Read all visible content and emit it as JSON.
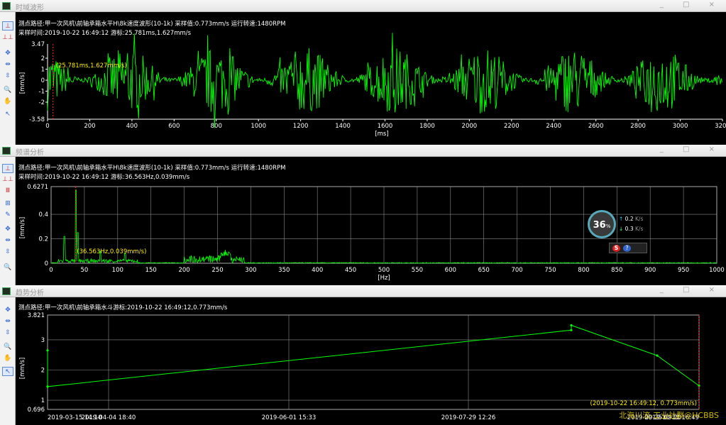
{
  "panels": {
    "time": {
      "title": "时域波形",
      "line1": "测点路径:甲一次风机\\前轴承箱水平H\\8k速度波形(10-1k)     采样值:0.773mm/s     运行转速:1480RPM",
      "line2": "采样时间:2019-10-22 16:49:12    游标:25.781ms,1.627mm/s",
      "cursor_label": "(25.781ms,1.627mm/s)",
      "y_unit": "[mm/s]",
      "x_unit": "[ms]",
      "y_top": "3.47",
      "y_bottom": "-3.58",
      "y_ticks": [
        "2",
        "1",
        "0",
        "-1",
        "-2"
      ],
      "x_ticks": [
        "0",
        "200",
        "400",
        "600",
        "800",
        "1000",
        "1200",
        "1400",
        "1600",
        "1800",
        "2000",
        "2200",
        "2400",
        "2600",
        "2800",
        "3000",
        "3200"
      ]
    },
    "spectrum": {
      "title": "频谱分析",
      "line1": "测点路径:甲一次风机\\前轴承箱水平H\\8k速度波形(10-1k)     采样值:0.773mm/s     运行转速:1480RPM",
      "line2": "采样时间:2019-10-22 16:49:12    游标:36.563Hz,0.039mm/s",
      "cursor_label": "(36.563Hz,0.039mm/s)",
      "y_unit": "[mm/s]",
      "x_unit": "[Hz]",
      "y_top": "0.6271",
      "y_ticks": [
        "0.4",
        "0.2",
        "0"
      ],
      "x_ticks": [
        "0",
        "50",
        "100",
        "150",
        "200",
        "250",
        "300",
        "350",
        "400",
        "450",
        "500",
        "550",
        "600",
        "650",
        "700",
        "750",
        "800",
        "850",
        "900",
        "950",
        "1000"
      ]
    },
    "trend": {
      "title": "趋势分析",
      "line1": "测点路径:甲一次风机\\前轴承箱水斗游标:2019-10-22 16:49:12,0.773mm/s",
      "cursor_label": "(2019-10-22 16:49:12, 0.773mm/s)",
      "y_unit": "[mm/s]",
      "y_top": "3.821",
      "y_bottom": "0.696",
      "y_ticks": [
        "3",
        "2",
        "1"
      ],
      "x_ticks": [
        "2019-03-15 14:10",
        "2019-04-04 18:40",
        "2019-06-01 15:33",
        "2019-07-29 12:26",
        "2019-09-25 09:20",
        "2019-10-22 16:49"
      ]
    }
  },
  "overlay": {
    "percent": "36",
    "percent_sign": "%",
    "up": "0.2",
    "up_unit": "K/s",
    "down": "0.3",
    "down_unit": "K/s"
  },
  "watermark": "北海川流-工业社群@HCBBS",
  "colors": {
    "trace": "#00ff00",
    "grid": "#8a8a8a",
    "cursor": "#ff2020",
    "label": "#ffee00"
  }
}
